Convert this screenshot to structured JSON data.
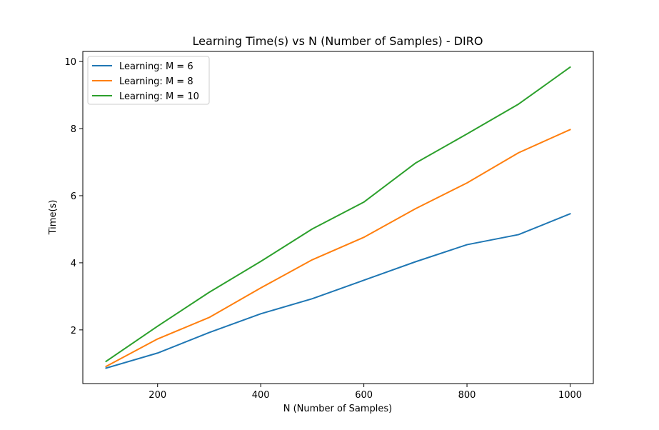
{
  "chart_data": {
    "type": "line",
    "title": "Learning Time(s) vs N (Number of Samples) - DIRO",
    "xlabel": "N (Number of Samples)",
    "ylabel": "Time(s)",
    "x": [
      100,
      200,
      300,
      400,
      500,
      600,
      700,
      800,
      900,
      1000
    ],
    "xlim": [
      55,
      1045
    ],
    "ylim": [
      0.4,
      10.3
    ],
    "xticks": [
      200,
      400,
      600,
      800,
      1000
    ],
    "yticks": [
      2,
      4,
      6,
      8,
      10
    ],
    "grid": false,
    "legend_position": "top-left",
    "series": [
      {
        "name": "Learning: M = 6",
        "color": "#1f77b4",
        "values": [
          0.86,
          1.31,
          1.92,
          2.48,
          2.93,
          3.48,
          4.03,
          4.54,
          4.84,
          5.46
        ]
      },
      {
        "name": "Learning: M = 8",
        "color": "#ff7f0e",
        "values": [
          0.91,
          1.73,
          2.37,
          3.25,
          4.09,
          4.76,
          5.61,
          6.38,
          7.28,
          7.97
        ]
      },
      {
        "name": "Learning: M = 10",
        "color": "#2ca02c",
        "values": [
          1.06,
          2.11,
          3.12,
          4.04,
          5.01,
          5.81,
          6.97,
          7.84,
          8.73,
          9.83
        ]
      }
    ]
  }
}
